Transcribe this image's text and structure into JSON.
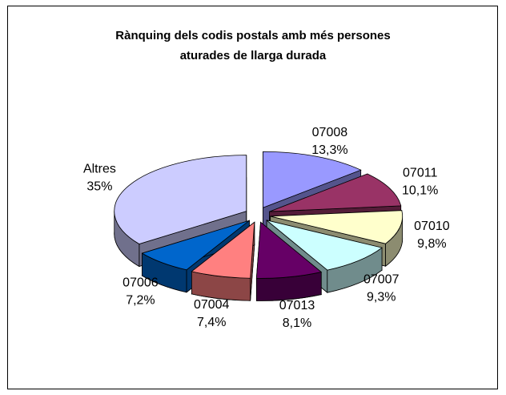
{
  "chart_data": {
    "type": "pie",
    "title": [
      "Rànquing dels codis postals amb més persones",
      "aturades de llarga durada"
    ],
    "categories": [
      "07008",
      "07011",
      "07010",
      "07007",
      "07013",
      "07004",
      "07006",
      "Altres"
    ],
    "values": [
      13.3,
      10.1,
      9.8,
      9.3,
      8.1,
      7.4,
      7.2,
      35
    ],
    "value_labels": [
      "13,3%",
      "10,1%",
      "9,8%",
      "9,3%",
      "8,1%",
      "7,4%",
      "7,2%",
      "35%"
    ],
    "colors": [
      "#9999ff",
      "#993366",
      "#ffffcc",
      "#ccffff",
      "#660066",
      "#ff8080",
      "#0066cc",
      "#ccccff"
    ]
  }
}
